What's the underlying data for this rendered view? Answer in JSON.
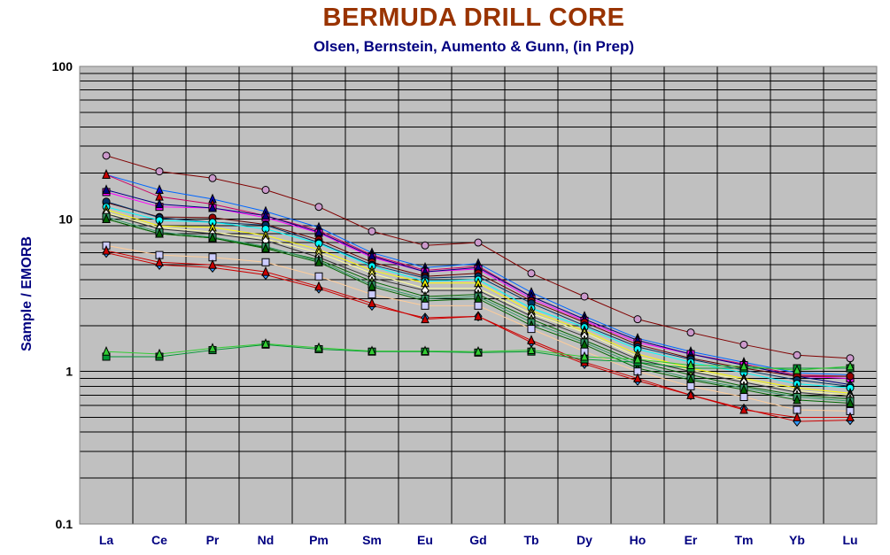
{
  "chart_data": {
    "type": "line",
    "title": "BERMUDA DRILL CORE",
    "subtitle": "Olsen, Bernstein, Aumento & Gunn, (in Prep)",
    "xlabel": "",
    "ylabel": "Sample / EMORB",
    "yscale": "log",
    "ylim": [
      0.1,
      100
    ],
    "yticks": [
      "0.1",
      "1",
      "10",
      "100"
    ],
    "grid": true,
    "legend": "none",
    "plot_background": "#c0c0c0",
    "categories": [
      "La",
      "Ce",
      "Pr",
      "Nd",
      "Pm",
      "Sm",
      "Eu",
      "Gd",
      "Tb",
      "Dy",
      "Ho",
      "Er",
      "Tm",
      "Yb",
      "Lu"
    ],
    "series": [
      {
        "color": "#800000",
        "marker": "circle",
        "fill": "#cc99cc",
        "values": [
          26,
          20.5,
          18.5,
          15.5,
          12,
          8.3,
          6.7,
          7,
          4.4,
          3.1,
          2.2,
          1.8,
          1.5,
          1.28,
          1.22
        ]
      },
      {
        "color": "#0066ff",
        "marker": "triangle",
        "fill": "#0000cc",
        "values": [
          19.5,
          15.5,
          13.5,
          11.2,
          8.8,
          6,
          4.8,
          5.1,
          3.3,
          2.3,
          1.65,
          1.35,
          1.15,
          0.98,
          0.95
        ]
      },
      {
        "color": "#cc0066",
        "marker": "triangle",
        "fill": "#cc0000",
        "values": [
          19.5,
          14,
          12.5,
          10.5,
          8.4,
          5.8,
          4.6,
          4.9,
          3.1,
          2.2,
          1.6,
          1.3,
          1.12,
          0.95,
          0.93
        ]
      },
      {
        "color": "#ff00ff",
        "marker": "square",
        "fill": "#ff00ff",
        "values": [
          15,
          12,
          11.8,
          10.2,
          8.1,
          5.6,
          4.5,
          4.7,
          3,
          2.15,
          1.55,
          1.3,
          1.1,
          0.93,
          0.9
        ]
      },
      {
        "color": "#000080",
        "marker": "triangle",
        "fill": "#000080",
        "values": [
          15.5,
          12.5,
          11.8,
          10.5,
          8.2,
          5.7,
          4.5,
          4.8,
          3.1,
          2.2,
          1.6,
          1.3,
          1.1,
          0.93,
          0.82
        ]
      },
      {
        "color": "#660000",
        "marker": "circle",
        "fill": "#990000",
        "values": [
          12.8,
          10.3,
          10.2,
          9.2,
          7.3,
          5.2,
          4.2,
          4.4,
          2.9,
          2.1,
          1.5,
          1.22,
          1.05,
          0.93,
          0.93
        ]
      },
      {
        "color": "#003366",
        "marker": "circle",
        "fill": "#003366",
        "values": [
          13,
          10.2,
          9.5,
          9.1,
          7,
          5,
          4.1,
          4.2,
          2.8,
          2,
          1.45,
          1.2,
          1.02,
          0.88,
          0.8
        ]
      },
      {
        "color": "#00ffff",
        "marker": "circle",
        "fill": "#00ffff",
        "values": [
          12,
          9.8,
          9.5,
          8.6,
          6.9,
          4.9,
          3.9,
          4,
          2.6,
          1.95,
          1.4,
          1.15,
          0.98,
          0.83,
          0.78
        ]
      },
      {
        "color": "#ffff00",
        "marker": "triangle",
        "fill": "#ffff00",
        "values": [
          11.5,
          9,
          8.8,
          7.8,
          6.3,
          4.6,
          3.8,
          3.8,
          2.5,
          1.85,
          1.3,
          1.05,
          0.9,
          0.78,
          0.72
        ]
      },
      {
        "color": "#ffff99",
        "marker": "triangle",
        "fill": "#ffff66",
        "values": [
          11,
          8.8,
          8.2,
          7.4,
          6,
          4.4,
          3.5,
          3.5,
          2.4,
          1.8,
          1.25,
          1.02,
          0.88,
          0.75,
          0.7
        ]
      },
      {
        "color": "#333333",
        "marker": "diamond",
        "fill": "#ffffff",
        "values": [
          10.8,
          8.6,
          8,
          7.2,
          5.6,
          4.1,
          3.4,
          3.4,
          2.3,
          1.7,
          1.2,
          1,
          0.85,
          0.73,
          0.68
        ]
      },
      {
        "color": "#006600",
        "marker": "triangle",
        "fill": "#669933",
        "values": [
          10,
          8,
          7.5,
          6.5,
          5.4,
          3.9,
          3.1,
          3.2,
          2.2,
          1.6,
          1.15,
          0.95,
          0.8,
          0.7,
          0.66
        ]
      },
      {
        "color": "#339966",
        "marker": "square",
        "fill": "#339966",
        "values": [
          10.3,
          8.2,
          7.6,
          6.6,
          5.3,
          3.7,
          3,
          3.1,
          2.1,
          1.55,
          1.1,
          0.9,
          0.78,
          0.68,
          0.64
        ]
      },
      {
        "color": "#006600",
        "marker": "triangle",
        "fill": "#006600",
        "values": [
          10,
          8,
          7.5,
          6.4,
          5.2,
          3.6,
          2.9,
          3,
          2,
          1.5,
          1.05,
          0.88,
          0.76,
          0.65,
          0.62
        ]
      },
      {
        "color": "#ffcc99",
        "marker": "square",
        "fill": "#ccccff",
        "values": [
          6.7,
          5.8,
          5.6,
          5.2,
          4.2,
          3.2,
          2.7,
          2.7,
          1.9,
          1.35,
          1,
          0.8,
          0.68,
          0.56,
          0.55
        ]
      },
      {
        "color": "#cc0000",
        "marker": "diamond",
        "fill": "#3399ff",
        "values": [
          6,
          5,
          4.8,
          4.3,
          3.5,
          2.7,
          2.25,
          2.3,
          1.55,
          1.12,
          0.87,
          0.7,
          0.57,
          0.47,
          0.48
        ]
      },
      {
        "color": "#cc0000",
        "marker": "triangle",
        "fill": "#cc0000",
        "values": [
          6.2,
          5.2,
          5,
          4.5,
          3.6,
          2.8,
          2.2,
          2.3,
          1.6,
          1.15,
          0.9,
          0.7,
          0.56,
          0.5,
          0.5
        ]
      },
      {
        "color": "#009933",
        "marker": "square",
        "fill": "#009933",
        "values": [
          1.25,
          1.25,
          1.38,
          1.5,
          1.4,
          1.35,
          1.35,
          1.33,
          1.35,
          1.2,
          1.15,
          1.05,
          1.05,
          1.05,
          1.05
        ]
      },
      {
        "color": "#33cc33",
        "marker": "triangle",
        "fill": "#33cc33",
        "values": [
          1.35,
          1.3,
          1.42,
          1.52,
          1.43,
          1.36,
          1.36,
          1.35,
          1.38,
          1.25,
          1.2,
          1.1,
          1.08,
          1.02,
          1.08
        ]
      }
    ]
  }
}
